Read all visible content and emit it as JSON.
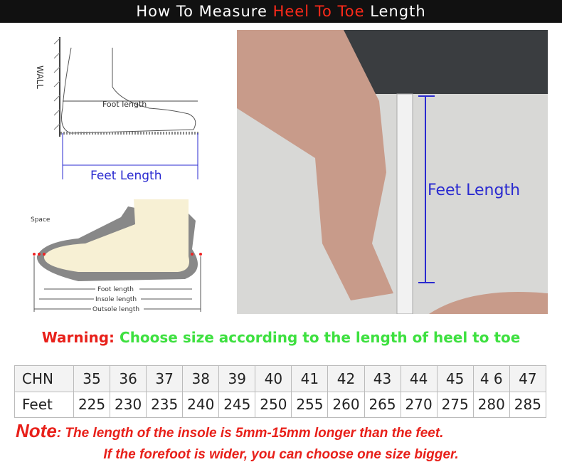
{
  "header": {
    "pre": "How To Measure ",
    "highlight": "Heel To Toe",
    "post": " Length"
  },
  "diagram1": {
    "wall": "WALL",
    "foot_length": "Foot length",
    "feet_length": "Feet Length"
  },
  "diagram2": {
    "space": "Space",
    "foot_length": "Foot length",
    "insole_length": "Insole length",
    "outsole_length": "Outsole length"
  },
  "photo": {
    "label": "Feet Length"
  },
  "warning": {
    "label": "Warning:",
    "text": " Choose size according to the length of heel to toe"
  },
  "size_table": {
    "rows": [
      {
        "label": "CHN",
        "values": [
          "35",
          "36",
          "37",
          "38",
          "39",
          "40",
          "41",
          "42",
          "43",
          "44",
          "45",
          "4 6",
          "47"
        ]
      },
      {
        "label": "Feet",
        "values": [
          "225",
          "230",
          "235",
          "240",
          "245",
          "250",
          "255",
          "260",
          "265",
          "270",
          "275",
          "280",
          "285"
        ]
      }
    ]
  },
  "note": {
    "label": "Note",
    "text": ": The length of the insole is  5mm-15mm longer than the feet.",
    "line2": "If the forefoot is wider, you can choose one size bigger."
  },
  "colors": {
    "accent_red": "#e8201a",
    "green": "#3ee040",
    "blue": "#2a2ad0"
  }
}
